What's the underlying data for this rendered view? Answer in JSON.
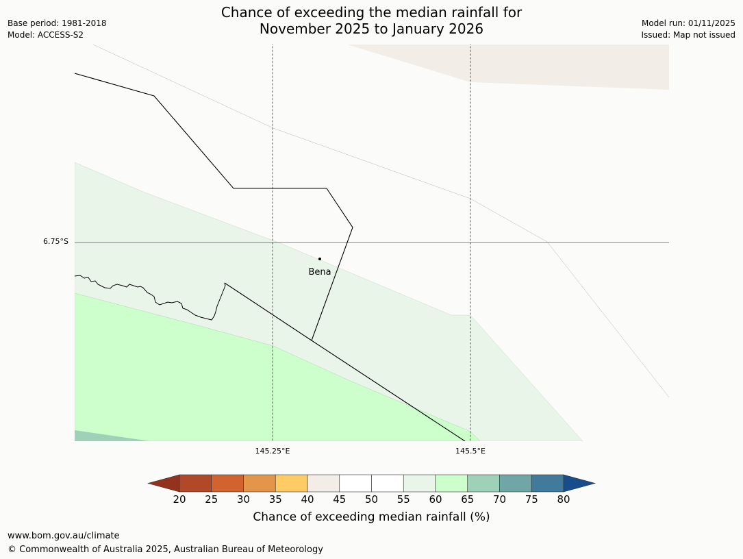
{
  "title_line1": "Chance of exceeding the median rainfall for",
  "title_line2": "November 2025 to January 2026",
  "meta_left": {
    "base_period": "Base period: 1981-2018",
    "model": "Model: ACCESS-S2"
  },
  "meta_right": {
    "model_run": "Model run: 01/11/2025",
    "issued": "Issued: Map not issued"
  },
  "map": {
    "latitude_labels": [
      "6.75°S"
    ],
    "longitude_labels": [
      "145.25°E",
      "145.5°E"
    ],
    "place": {
      "name": "Bena"
    },
    "colors": {
      "band_40_45": "#f2ede6",
      "band_55_60": "#eaf5ea",
      "band_60_65": "#ccffcc",
      "band_65_70": "#9fd1b9"
    }
  },
  "colorbar": {
    "ticks": [
      "20",
      "25",
      "30",
      "35",
      "40",
      "45",
      "50",
      "55",
      "60",
      "65",
      "70",
      "75",
      "80"
    ],
    "colors": [
      "#b14828",
      "#d0632f",
      "#e3954a",
      "#fecb65",
      "#f2ede6",
      "#ffffff",
      "#ffffff",
      "#eaf5ea",
      "#ccffcc",
      "#9fd1b9",
      "#70a6a6",
      "#417b9c"
    ],
    "under_color": "#93331e",
    "over_color": "#164d8a",
    "label": "Chance of exceeding median rainfall (%)"
  },
  "footer": {
    "url": "www.bom.gov.au/climate",
    "copyright": "© Commonwealth of Australia 2025, Australian Bureau of Meteorology"
  }
}
